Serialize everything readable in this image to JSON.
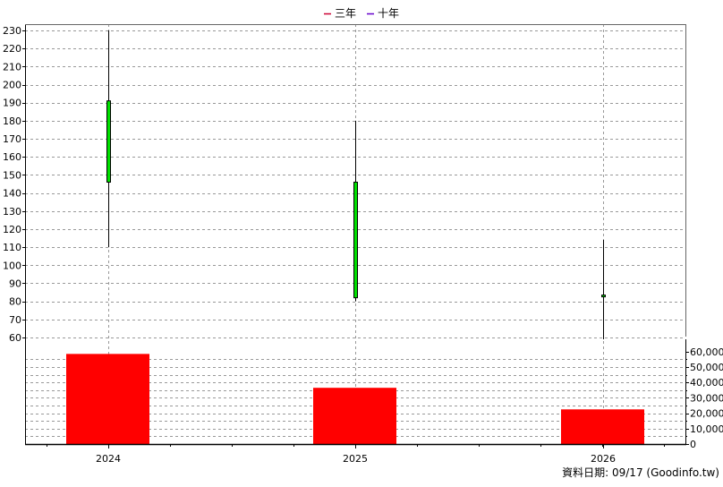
{
  "legend": [
    {
      "label": "三年",
      "color": "#cc0033"
    },
    {
      "label": "十年",
      "color": "#6600cc"
    }
  ],
  "footer": "資料日期: 09/17  (Goodinfo.tw)",
  "colors": {
    "candle_up": "#00e000",
    "volume": "#ff0000",
    "grid": "#999999",
    "axis": "#000000"
  },
  "chart_data": [
    {
      "type": "candlestick",
      "categories": [
        "2024",
        "2025",
        "2026"
      ],
      "series": [
        {
          "x": "2024",
          "open": 146,
          "close": 191,
          "low": 110,
          "high": 230
        },
        {
          "x": "2025",
          "open": 82,
          "close": 146,
          "low": 80,
          "high": 180
        },
        {
          "x": "2026",
          "open": 82.5,
          "close": 83.5,
          "low": 59,
          "high": 114
        }
      ],
      "yaxis": {
        "ticks": [
          60,
          70,
          80,
          90,
          100,
          110,
          120,
          130,
          140,
          150,
          160,
          170,
          180,
          190,
          200,
          210,
          220,
          230
        ],
        "ylim": [
          60,
          232
        ]
      },
      "grid": true
    },
    {
      "type": "bar",
      "categories": [
        "2024",
        "2025",
        "2026"
      ],
      "values": [
        58500,
        36500,
        22500
      ],
      "yaxis": {
        "ticks": [
          0,
          10000,
          20000,
          30000,
          40000,
          50000,
          60000
        ],
        "tick_labels": [
          "0",
          "10,000",
          "20,000",
          "30,000",
          "40,000",
          "50,000",
          "60,000"
        ],
        "ylim": [
          0,
          68000
        ]
      },
      "grid": true
    }
  ]
}
